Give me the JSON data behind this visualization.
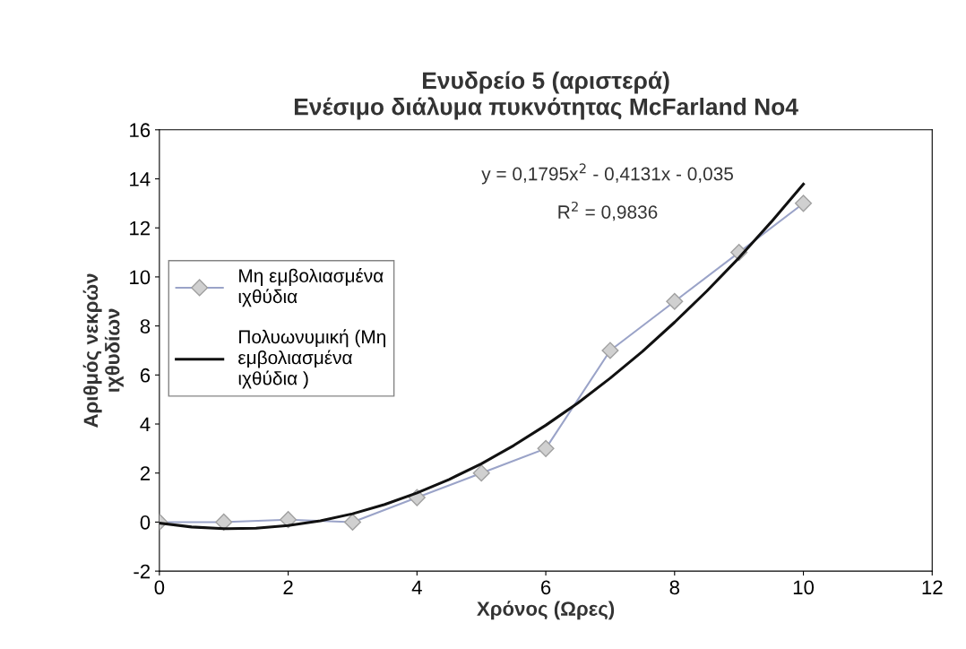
{
  "chart_data": {
    "type": "line",
    "title": "Ενυδρείο 5 (αριστερά)\nΕνέσιμο διάλυμα πυκνότητας McFarland No4",
    "xlabel": "Χρόνος (Ωρες)",
    "ylabel": "Αριθμός νεκρών\nιχθυδίων",
    "x": [
      0,
      1,
      2,
      3,
      4,
      5,
      6,
      7,
      8,
      9,
      10
    ],
    "series": [
      {
        "name": "Μη εμβολιασμένα\nιχθύδια",
        "color": "#9aa3c8",
        "marker": "diamond",
        "values": [
          0,
          0,
          0.1,
          0,
          1,
          2,
          3,
          7,
          9,
          11,
          13
        ]
      },
      {
        "name": "Πολυωνυμική (Μη\nεμβολιασμένα\nιχθύδια )",
        "type": "line",
        "color": "#111111",
        "marker": "none",
        "x": [
          0,
          0.5,
          1,
          1.5,
          2,
          2.5,
          3,
          3.5,
          4,
          4.5,
          5,
          5.5,
          6,
          6.5,
          7,
          7.5,
          8,
          8.5,
          9,
          9.5,
          10
        ],
        "values": [
          -0.04,
          -0.2,
          -0.27,
          -0.25,
          -0.14,
          0.05,
          0.34,
          0.72,
          1.19,
          1.74,
          2.38,
          3.12,
          3.95,
          4.86,
          5.87,
          6.96,
          8.15,
          9.42,
          10.78,
          12.24,
          13.78
        ]
      }
    ],
    "annotations": [
      "y = 0,1795x$^{2}$ - 0,4131x - 0,035",
      "R$^{2}$ = 0,9836"
    ],
    "xlim": [
      0,
      12
    ],
    "xticks": [
      0,
      2,
      4,
      6,
      8,
      10,
      12
    ],
    "ylim": [
      -2,
      16
    ],
    "yticks": [
      -2,
      0,
      2,
      4,
      6,
      8,
      10,
      12,
      14,
      16
    ],
    "grid": false,
    "legend": "left"
  }
}
